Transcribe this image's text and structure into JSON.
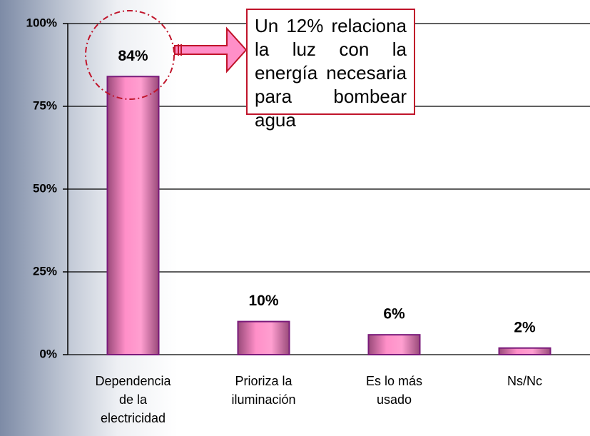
{
  "chart_data": {
    "type": "bar",
    "categories": [
      "Dependencia de la electricidad",
      "Prioriza la iluminación",
      "Es lo más usado",
      "Ns/Nc"
    ],
    "values": [
      84,
      10,
      6,
      2
    ],
    "value_labels": [
      "84%",
      "10%",
      "6%",
      "2%"
    ],
    "color": "#ff8fc8",
    "ylim": [
      0,
      100
    ],
    "yticks": [
      {
        "value": 0,
        "label": "0%"
      },
      {
        "value": 25,
        "label": "25%"
      },
      {
        "value": 50,
        "label": "50%"
      },
      {
        "value": 75,
        "label": "75%"
      },
      {
        "value": 100,
        "label": "100%"
      }
    ],
    "grid": true,
    "annotation": "Un 12% relaciona la luz con la energía necesaria para bombear agua"
  }
}
